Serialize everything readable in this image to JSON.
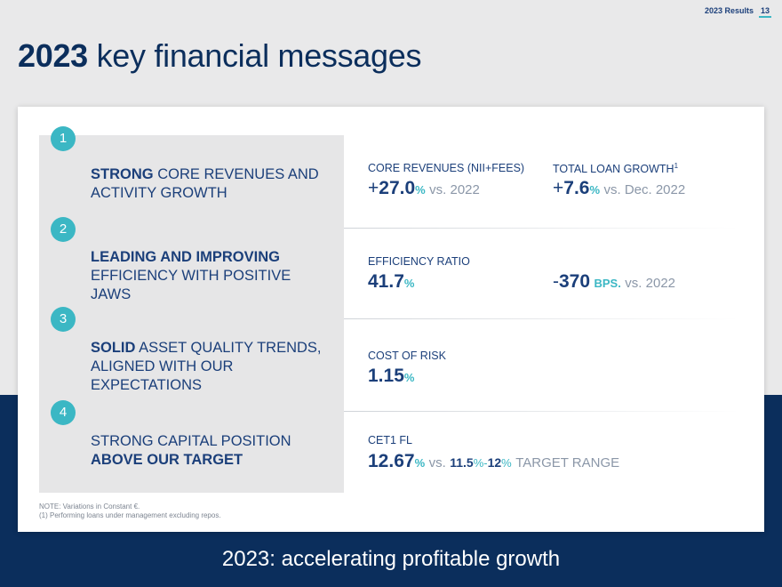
{
  "header": {
    "section": "2023 Results",
    "page_number": "13"
  },
  "title": {
    "year": "2023",
    "rest": "key financial messages"
  },
  "messages": [
    {
      "number": "1",
      "bold_1": "STRONG",
      "text_1": "CORE REVENUES AND ACTIVITY GROWTH"
    },
    {
      "number": "2",
      "bold_1": "LEADING AND IMPROVING",
      "text_1": "EFFICIENCY WITH POSITIVE JAWS"
    },
    {
      "number": "3",
      "bold_1": "SOLID",
      "text_1": "ASSET QUALITY TRENDS, ALIGNED WITH OUR EXPECTATIONS"
    },
    {
      "number": "4",
      "text_1": "STRONG CAPITAL POSITION",
      "bold_1": "ABOVE OUR TARGET"
    }
  ],
  "kpis": {
    "core_revenues": {
      "label": "CORE REVENUES (NII+FEES)",
      "sign": "+",
      "value": "27.0",
      "unit": "%",
      "comparison": "vs. 2022"
    },
    "loan_growth": {
      "label": "TOTAL LOAN GROWTH",
      "footnote_mark": "1",
      "sign": "+",
      "value": "7.6",
      "unit": "%",
      "comparison": "vs. Dec. 2022"
    },
    "efficiency": {
      "label": "EFFICIENCY RATIO",
      "value": "41.7",
      "unit": "%"
    },
    "efficiency_change": {
      "sign": "-",
      "value": "370",
      "unit": "BPS.",
      "comparison": "vs. 2022"
    },
    "cost_of_risk": {
      "label": "COST OF RISK",
      "value": "1.15",
      "unit": "%"
    },
    "cet1": {
      "label": "CET1 FL",
      "value": "12.67",
      "unit": "%",
      "comparison": "vs.",
      "range_low": "11.5",
      "range_low_unit": "%",
      "range_sep": "-",
      "range_high": "12",
      "range_high_unit": "%",
      "range_label": "TARGET RANGE"
    }
  },
  "notes": {
    "note_1": "NOTE: Variations in Constant €.",
    "note_2": "(1) Performing loans under management excluding repos."
  },
  "footer": {
    "tagline": "2023: accelerating profitable growth"
  },
  "colors": {
    "navy": "#0b2e5c",
    "teal": "#3bb7c4",
    "text_blue": "#1b3f7a",
    "grey_bg": "#e9e9ea"
  }
}
